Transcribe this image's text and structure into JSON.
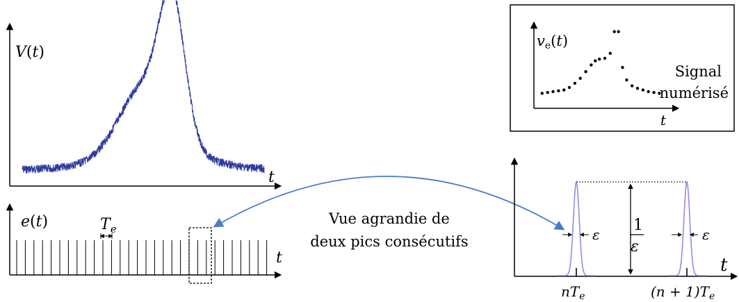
{
  "signal_panel": {
    "ylabel_fn": "V",
    "ylabel_arg": "t",
    "xlabel": "t"
  },
  "comb_panel": {
    "ylabel_fn": "e",
    "ylabel_arg": "t",
    "xlabel": "t",
    "period_label": "T",
    "period_sub": "e"
  },
  "digitized_panel": {
    "ylabel_fn": "v",
    "ylabel_sub": "e",
    "ylabel_arg": "t",
    "xlabel": "t",
    "caption_line1": "Signal",
    "caption_line2": "numérisé"
  },
  "zoom_caption": {
    "line1": "Vue agrandie de",
    "line2": "deux pics consécutifs"
  },
  "zoom_panel": {
    "xlabel": "t",
    "width_label": "ε",
    "height_num": "1",
    "height_den": "ε",
    "tick1_label": "nT",
    "tick1_sub": "e",
    "tick2_label": "(n + 1)T",
    "tick2_sub": "e"
  },
  "colors": {
    "signal": "#2e3a9e",
    "arrow": "#4a7cc8",
    "pulse": "#8b8ee0"
  },
  "digitized_points": [
    [
      0.04,
      0.18
    ],
    [
      0.08,
      0.19
    ],
    [
      0.12,
      0.2
    ],
    [
      0.16,
      0.21
    ],
    [
      0.2,
      0.22
    ],
    [
      0.24,
      0.25
    ],
    [
      0.28,
      0.3
    ],
    [
      0.32,
      0.36
    ],
    [
      0.36,
      0.44
    ],
    [
      0.4,
      0.52
    ],
    [
      0.43,
      0.57
    ],
    [
      0.46,
      0.59
    ],
    [
      0.5,
      0.6
    ],
    [
      0.54,
      0.66
    ],
    [
      0.57,
      0.92
    ],
    [
      0.6,
      0.92
    ],
    [
      0.63,
      0.49
    ],
    [
      0.66,
      0.34
    ],
    [
      0.7,
      0.27
    ],
    [
      0.74,
      0.24
    ],
    [
      0.78,
      0.22
    ],
    [
      0.82,
      0.2
    ],
    [
      0.86,
      0.19
    ],
    [
      0.9,
      0.18
    ]
  ]
}
